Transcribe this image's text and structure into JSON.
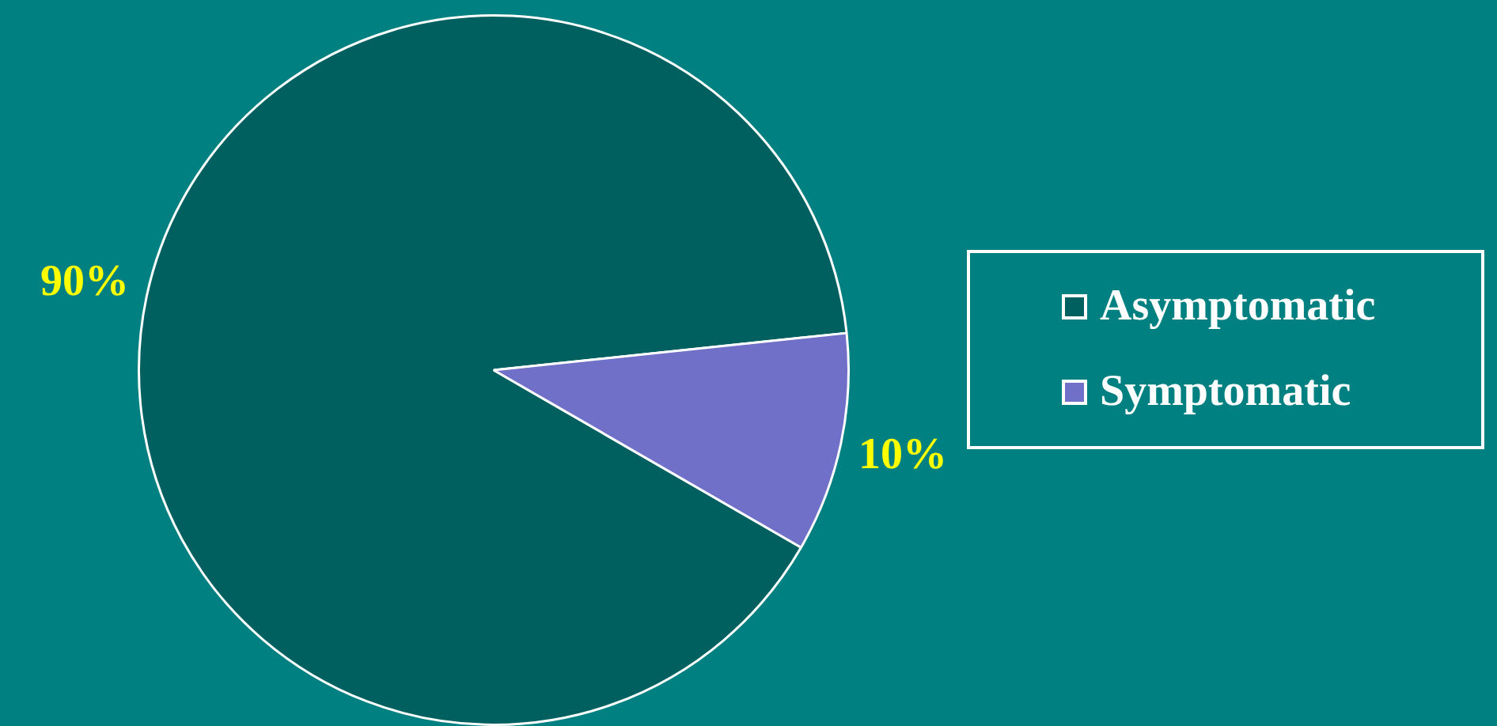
{
  "chart_data": {
    "type": "pie",
    "categories": [
      "Asymptomatic",
      "Symptomatic"
    ],
    "values": [
      90,
      10
    ],
    "colors": [
      "#006060",
      "#7070c8"
    ],
    "value_labels": [
      "90%",
      "10%"
    ],
    "legend": "right"
  }
}
